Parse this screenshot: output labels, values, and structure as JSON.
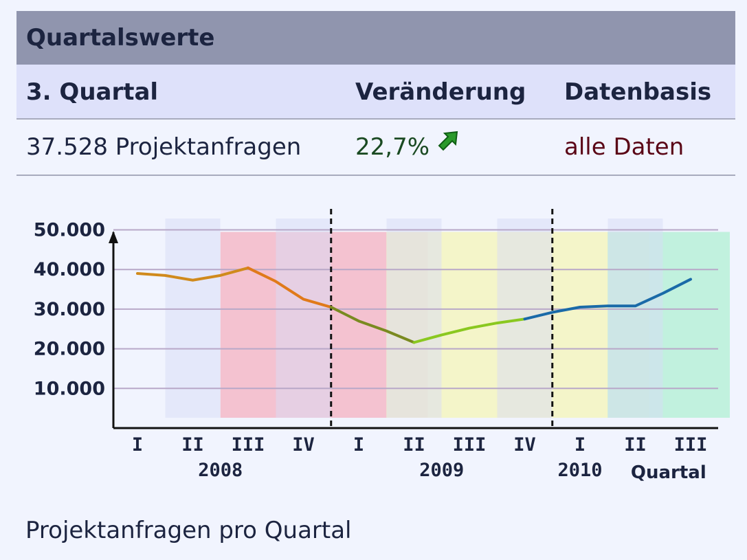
{
  "panel": {
    "title": "Quartalswerte",
    "headers": {
      "period": "3. Quartal",
      "change": "Veränderung",
      "basis": "Datenbasis"
    },
    "values": {
      "count": "37.528 Projektanfragen",
      "change": "22,7%",
      "basis": "alle Daten"
    },
    "change_icon": "arrow-up-right-icon"
  },
  "caption": "Projektanfragen pro Quartal",
  "chart_data": {
    "type": "line",
    "x_label": "Quartal",
    "categories": [
      "I",
      "II",
      "III",
      "IV",
      "I",
      "II",
      "III",
      "IV",
      "I",
      "II",
      "III"
    ],
    "years": [
      {
        "label": "2008",
        "start": 0,
        "end": 3
      },
      {
        "label": "2009",
        "start": 4,
        "end": 7
      },
      {
        "label": "2010",
        "start": 8,
        "end": 10
      }
    ],
    "year_separators_after": [
      3,
      7
    ],
    "ylim": [
      0,
      50000
    ],
    "yticks": [
      {
        "value": 10000,
        "label": "10.000"
      },
      {
        "value": 20000,
        "label": "20.000"
      },
      {
        "value": 30000,
        "label": "30.000"
      },
      {
        "value": 40000,
        "label": "40.000"
      },
      {
        "value": 50000,
        "label": "50.000"
      }
    ],
    "points": [
      {
        "x": 0,
        "y": 39000
      },
      {
        "x": 0.5,
        "y": 38500
      },
      {
        "x": 1,
        "y": 37300
      },
      {
        "x": 1.5,
        "y": 38500
      },
      {
        "x": 2,
        "y": 40400
      },
      {
        "x": 2.5,
        "y": 37000
      },
      {
        "x": 3,
        "y": 32500
      },
      {
        "x": 3.5,
        "y": 30500
      },
      {
        "x": 4,
        "y": 27000
      },
      {
        "x": 4.5,
        "y": 24500
      },
      {
        "x": 5,
        "y": 21600
      },
      {
        "x": 5.5,
        "y": 23500
      },
      {
        "x": 6,
        "y": 25200
      },
      {
        "x": 6.5,
        "y": 26500
      },
      {
        "x": 7,
        "y": 27500
      },
      {
        "x": 7.5,
        "y": 29200
      },
      {
        "x": 8,
        "y": 30500
      },
      {
        "x": 8.5,
        "y": 30800
      },
      {
        "x": 9,
        "y": 30800
      },
      {
        "x": 9.5,
        "y": 34000
      },
      {
        "x": 10,
        "y": 37528
      }
    ],
    "line_segments": [
      {
        "from": 0,
        "to": 2,
        "color": "#d08a1c"
      },
      {
        "from": 2,
        "to": 3.5,
        "color": "#e07a1a"
      },
      {
        "from": 3.5,
        "to": 5,
        "color": "#7a8a20"
      },
      {
        "from": 5,
        "to": 7,
        "color": "#8ac820"
      },
      {
        "from": 7,
        "to": 10,
        "color": "#1a6aa8"
      }
    ],
    "zones": [
      {
        "from": 2,
        "to": 5,
        "color": "#f5b8c8"
      },
      {
        "from": 5,
        "to": 9,
        "color": "#f4f4c0"
      },
      {
        "from": 9,
        "to": 10.5,
        "color": "#b8f0d8"
      }
    ]
  }
}
